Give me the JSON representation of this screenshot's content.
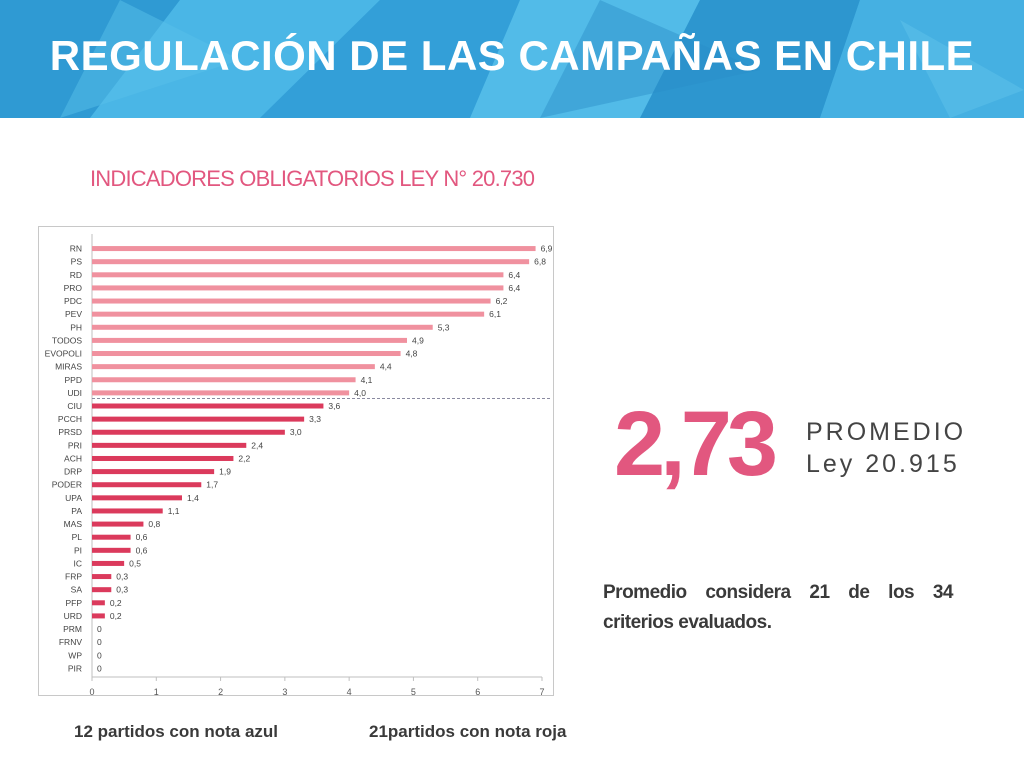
{
  "header": {
    "title": "REGULACIÓN DE LAS CAMPAÑAS EN CHILE",
    "color": "#3aa8de"
  },
  "subtitle": "INDICADORES OBLIGATORIOS LEY N° 20.730",
  "average": {
    "value": "2,73",
    "label_line1": "PROMEDIO",
    "label_line2": "Ley 20.915"
  },
  "note": "Promedio considera 21 de los 34 criterios evaluados.",
  "footer": {
    "left": "12 partidos con nota azul",
    "right": "21partidos con nota roja"
  },
  "chart_data": {
    "type": "bar",
    "orientation": "horizontal",
    "categories": [
      "RN",
      "PS",
      "RD",
      "PRO",
      "PDC",
      "PEV",
      "PH",
      "TODOS",
      "EVOPOLI",
      "MIRAS",
      "PPD",
      "UDI",
      "CIU",
      "PCCH",
      "PRSD",
      "PRI",
      "ACH",
      "DRP",
      "PODER",
      "UPA",
      "PA",
      "MAS",
      "PL",
      "PI",
      "IC",
      "FRP",
      "SA",
      "PFP",
      "URD",
      "PRM",
      "FRNV",
      "WP",
      "PIR"
    ],
    "values": [
      6.9,
      6.8,
      6.4,
      6.4,
      6.2,
      6.1,
      5.3,
      4.9,
      4.8,
      4.4,
      4.1,
      4.0,
      3.6,
      3.3,
      3.0,
      2.4,
      2.2,
      1.9,
      1.7,
      1.4,
      1.1,
      0.8,
      0.6,
      0.6,
      0.5,
      0.3,
      0.3,
      0.2,
      0.2,
      0,
      0,
      0,
      0
    ],
    "value_labels": [
      "6,9",
      "6,8",
      "6,4",
      "6,4",
      "6,2",
      "6,1",
      "5,3",
      "4,9",
      "4,8",
      "4,4",
      "4,1",
      "4,0",
      "3,6",
      "3,3",
      "3,0",
      "2,4",
      "2,2",
      "1,9",
      "1,7",
      "1,4",
      "1,1",
      "0,8",
      "0,6",
      "0,6",
      "0,5",
      "0,3",
      "0,3",
      "0,2",
      "0,2",
      "0",
      "0",
      "0",
      "0"
    ],
    "xlim": [
      0,
      7
    ],
    "xticks": [
      "0",
      "1",
      "2",
      "3",
      "4",
      "5",
      "6",
      "7"
    ],
    "threshold_value": 4.0,
    "colors": {
      "above": "#f0919f",
      "below": "#db3a5c"
    }
  }
}
